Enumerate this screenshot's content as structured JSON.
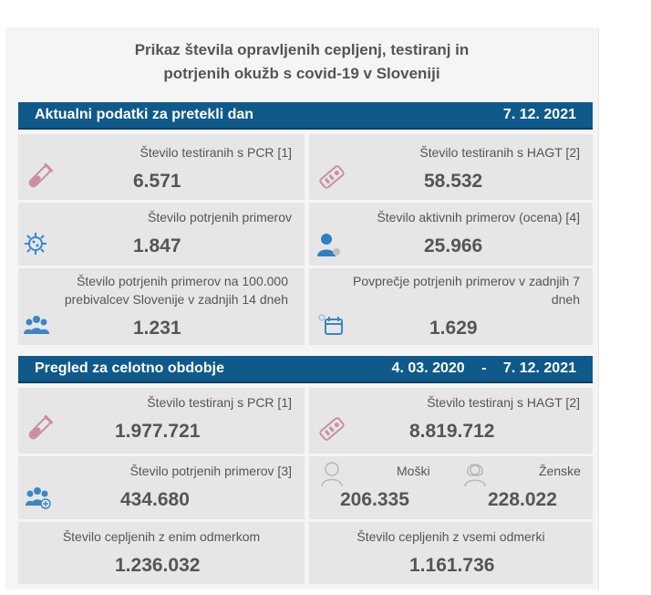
{
  "header": {
    "title_line1": "Prikaz števila opravljenih cepljenj, testiranj in",
    "title_line2": "potrjenih okužb s covid-19 v Sloveniji"
  },
  "section1": {
    "label": "Aktualni podatki za pretekli dan",
    "date": "7. 12. 2021",
    "cards": [
      {
        "label": "Število testiranih s PCR [1]",
        "value": "6.571",
        "icon": "test-tube-icon"
      },
      {
        "label": "Število testiranih s HAGT [2]",
        "value": "58.532",
        "icon": "rapid-test-icon"
      },
      {
        "label": "Število potrjenih primerov",
        "value": "1.847",
        "icon": "virus-icon"
      },
      {
        "label": "Število aktivnih primerov (ocena) [4]",
        "value": "25.966",
        "icon": "person-virus-icon"
      },
      {
        "label_line1": "Število potrjenih primerov na 100.000",
        "label_line2": "prebivalcev Slovenije v zadnjih 14 dneh",
        "value": "1.231",
        "icon": "group-virus-icon"
      },
      {
        "label_line1": "Povprečje potrjenih primerov v zadnjih 7",
        "label_line2": "dneh",
        "value": "1.629",
        "icon": "calendar-virus-icon"
      }
    ]
  },
  "section2": {
    "label": "Pregled za celotno obdobje",
    "date_from": "4. 03. 2020",
    "dash": "-",
    "date_to": "7. 12. 2021",
    "cards": [
      {
        "label": "Število testiranj s PCR [1]",
        "value": "1.977.721",
        "icon": "test-tube-icon"
      },
      {
        "label": "Število testiranj s HAGT [2]",
        "value": "8.819.712",
        "icon": "rapid-test-icon"
      },
      {
        "label": "Število potrjenih primerov [3]",
        "value": "434.680",
        "icon": "group-plus-icon"
      },
      {
        "male_label": "Moški",
        "male_value": "206.335",
        "female_label": "Ženske",
        "female_value": "228.022"
      },
      {
        "label": "Število cepljenih z enim odmerkom",
        "value": "1.236.032"
      },
      {
        "label": "Število cepljenih z vsemi odmerki",
        "value": "1.161.736"
      }
    ]
  },
  "colors": {
    "bar": "#0f5a8a",
    "card": "#e6e6e6",
    "text": "#555555",
    "icon_pink": "#c98fa0",
    "icon_blue": "#3a86c8"
  }
}
